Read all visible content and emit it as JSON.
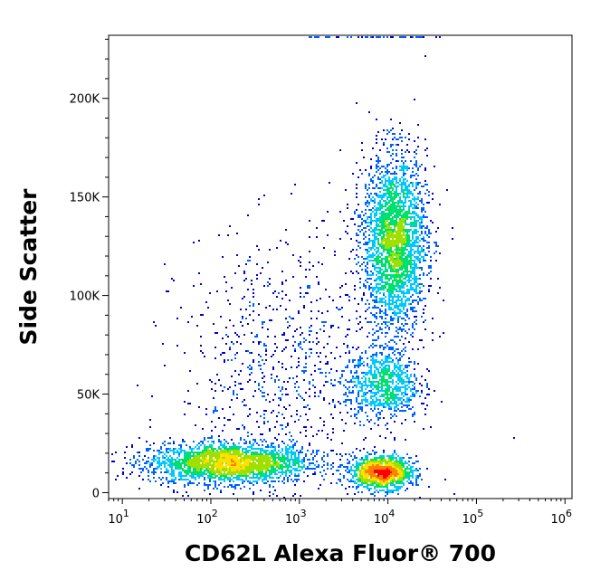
{
  "chart_data": {
    "type": "scatter",
    "subtype": "flow-cytometry-density-dot-plot",
    "title": "",
    "xlabel": "CD62L Alexa Fluor® 700",
    "ylabel": "Side Scatter",
    "xscale": "log",
    "xlim": [
      7,
      1200000
    ],
    "ylim": [
      -3000,
      232000
    ],
    "xticks": [
      {
        "value": 10,
        "base": "10",
        "exp": "1"
      },
      {
        "value": 100,
        "base": "10",
        "exp": "2"
      },
      {
        "value": 1000,
        "base": "10",
        "exp": "3"
      },
      {
        "value": 10000,
        "base": "10",
        "exp": "4"
      },
      {
        "value": 100000,
        "base": "10",
        "exp": "5"
      },
      {
        "value": 1000000,
        "base": "10",
        "exp": "6"
      }
    ],
    "yticks": [
      {
        "value": 0,
        "label": "0"
      },
      {
        "value": 50000,
        "label": "50K"
      },
      {
        "value": 100000,
        "label": "100K"
      },
      {
        "value": 150000,
        "label": "150K"
      },
      {
        "value": 200000,
        "label": "200K"
      }
    ],
    "grid": false,
    "legend": "none",
    "color_scale": [
      "#0000cc",
      "#0060ff",
      "#00c8ff",
      "#00e070",
      "#a0e000",
      "#ffe000",
      "#ff8000",
      "#ff0000"
    ],
    "populations": [
      {
        "name_hint": "low-CD62L low-SSC",
        "x_center": 160,
        "y_center": 15000,
        "x_spread_decades": 0.45,
        "y_spread": 5000,
        "weight": 0.3
      },
      {
        "name_hint": "CD62L+ low-SSC",
        "x_center": 8500,
        "y_center": 10000,
        "x_spread_decades": 0.17,
        "y_spread": 4000,
        "weight": 0.17
      },
      {
        "name_hint": "CD62L+ high-SSC",
        "x_center": 12000,
        "y_center": 127000,
        "x_spread_decades": 0.18,
        "y_spread": 22000,
        "weight": 0.33
      },
      {
        "name_hint": "CD62L+ mid-SSC",
        "x_center": 9000,
        "y_center": 55000,
        "x_spread_decades": 0.2,
        "y_spread": 9000,
        "weight": 0.1
      },
      {
        "name_hint": "sparse scatter",
        "x_center": 700,
        "y_center": 60000,
        "x_spread_decades": 0.6,
        "y_spread": 35000,
        "weight": 0.1
      }
    ]
  }
}
